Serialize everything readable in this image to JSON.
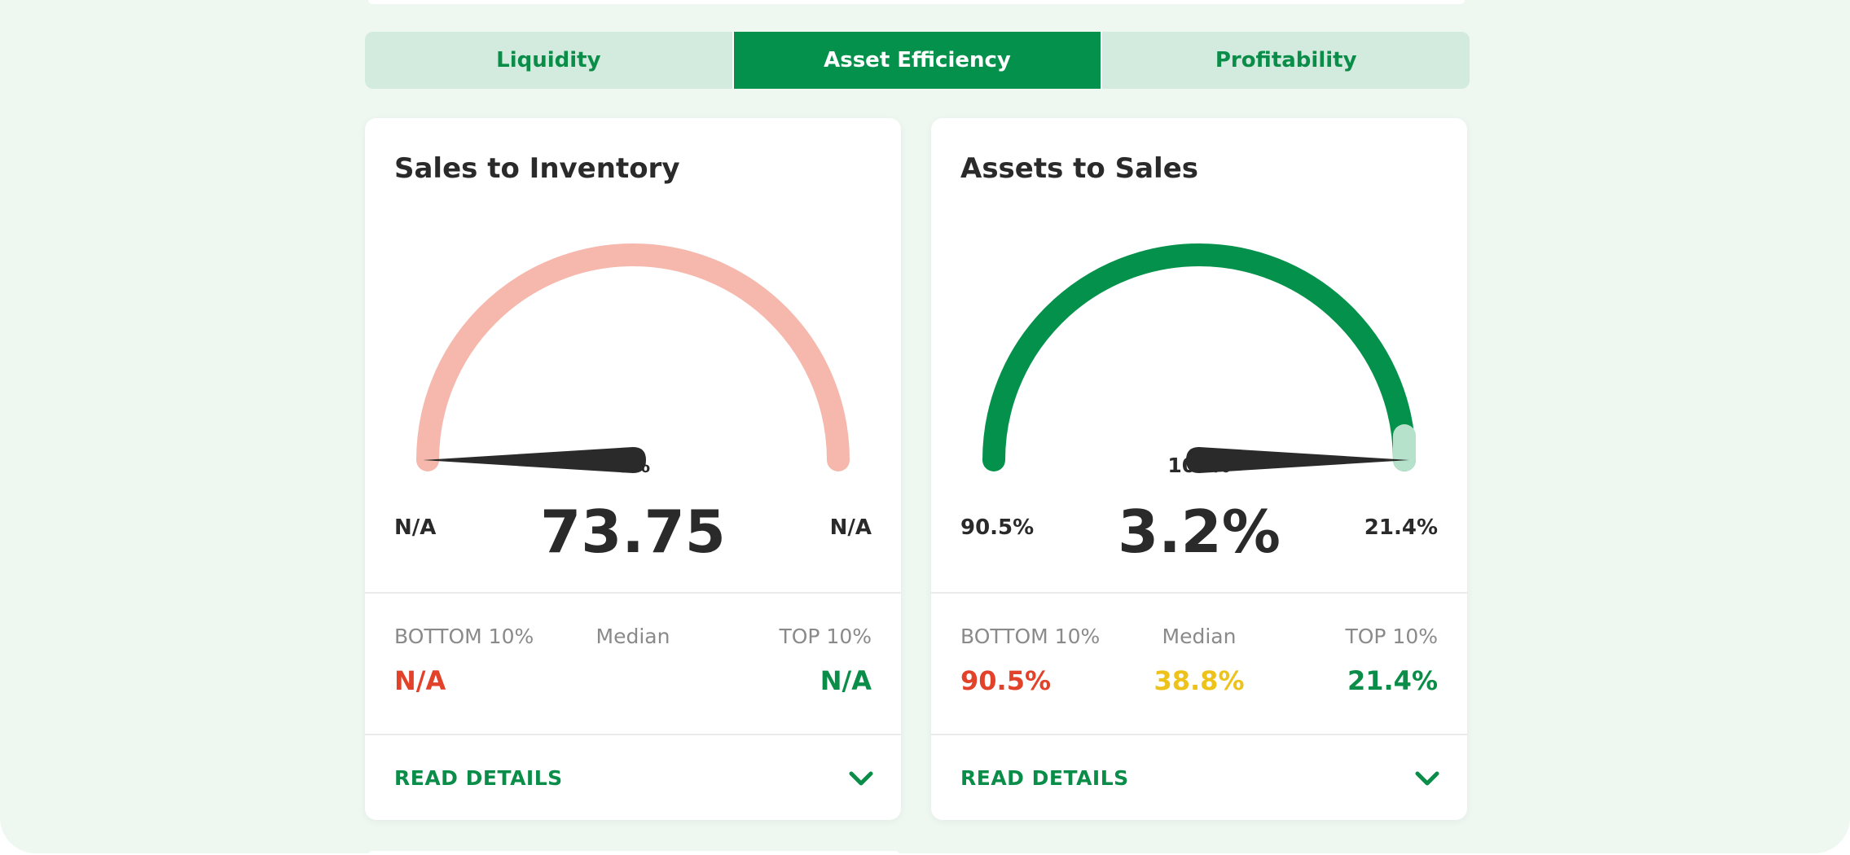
{
  "tabs": [
    {
      "label": "Liquidity",
      "active": false
    },
    {
      "label": "Asset Efficiency",
      "active": true
    },
    {
      "label": "Profitability",
      "active": false
    }
  ],
  "cards": [
    {
      "title": "Sales to Inventory",
      "gauge_percent": 0,
      "gauge_percent_label": "0%",
      "gauge_arc_color": "#f6b8ad",
      "main_value": "73.75",
      "min_label": "N/A",
      "max_label": "N/A",
      "stats": {
        "bottom_label": "BOTTOM 10%",
        "bottom_value": "N/A",
        "median_label": "Median",
        "median_value": "",
        "top_label": "TOP 10%",
        "top_value": "N/A"
      },
      "read_details": "READ DETAILS"
    },
    {
      "title": "Assets to Sales",
      "gauge_percent": 100,
      "gauge_percent_label": "100%",
      "gauge_arc_color": "#04914b",
      "gauge_tail_color": "#b6e2cb",
      "main_value": "3.2%",
      "min_label": "90.5%",
      "max_label": "21.4%",
      "stats": {
        "bottom_label": "BOTTOM 10%",
        "bottom_value": "90.5%",
        "median_label": "Median",
        "median_value": "38.8%",
        "top_label": "TOP 10%",
        "top_value": "21.4%"
      },
      "read_details": "READ DETAILS"
    }
  ],
  "colors": {
    "accent": "#04914b",
    "bottom": "#e2412a",
    "median": "#edc21a",
    "top": "#0a8d48",
    "needle": "#2a2a2a"
  },
  "icons": {
    "read_details": "chevron-down-icon",
    "gauge_needle": "gauge-needle-icon"
  }
}
